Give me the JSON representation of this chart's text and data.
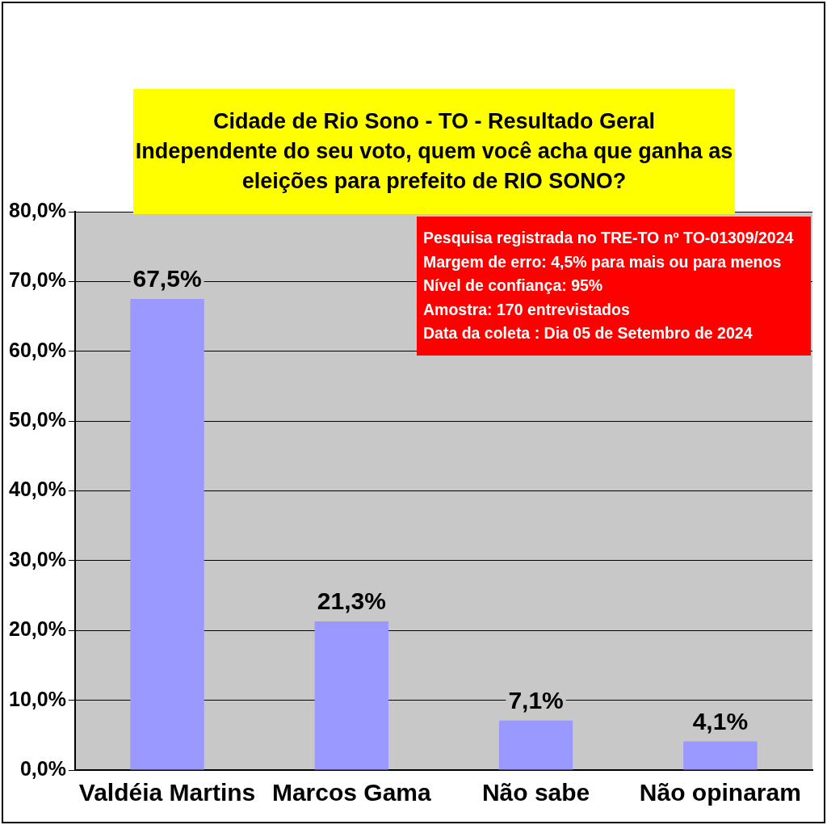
{
  "chart_data": {
    "type": "bar",
    "title": "Cidade de Rio Sono - TO - Resultado Geral\nIndependente do seu voto, quem você acha que ganha as eleições para prefeito de RIO SONO?",
    "categories": [
      "Valdéia Martins",
      "Marcos Gama",
      "Não sabe",
      "Não opinaram"
    ],
    "values": [
      67.5,
      21.3,
      7.1,
      4.1
    ],
    "color": "#9999ff",
    "value_labels": [
      "67,5%",
      "21,3%",
      "7,1%",
      "4,1%"
    ],
    "ylim": [
      0,
      80
    ],
    "yticks": [
      {
        "value": 0,
        "label": "0,0%"
      },
      {
        "value": 10,
        "label": "10,0%"
      },
      {
        "value": 20,
        "label": "20,0%"
      },
      {
        "value": 30,
        "label": "30,0%"
      },
      {
        "value": 40,
        "label": "40,0%"
      },
      {
        "value": 50,
        "label": "50,0%"
      },
      {
        "value": 60,
        "label": "60,0%"
      },
      {
        "value": 70,
        "label": "70,0%"
      },
      {
        "value": 80,
        "label": "80,0%"
      }
    ],
    "grid": "y",
    "legend": false,
    "annotations": [
      "Pesquisa registrada no TRE-TO nº TO-01309/2024",
      "Margem de erro: 4,5% para mais ou para menos",
      "Nível de confiança: 95%",
      "Amostra: 170 entrevistados",
      "Data da coleta : Dia 05 de Setembro de 2024"
    ]
  }
}
